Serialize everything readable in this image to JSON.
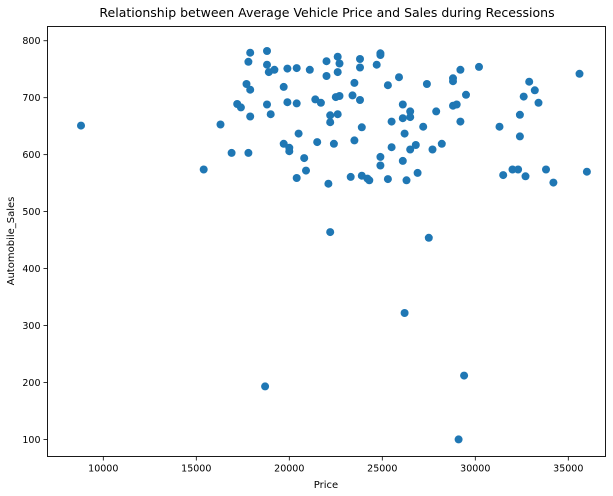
{
  "chart_data": {
    "type": "scatter",
    "title": "Relationship between Average Vehicle Price and Sales during Recessions",
    "xlabel": "Price",
    "ylabel": "Automobile_Sales",
    "xlim": [
      7000,
      37000
    ],
    "ylim": [
      70,
      825
    ],
    "xticks": [
      10000,
      15000,
      20000,
      25000,
      30000,
      35000
    ],
    "xtick_labels": [
      "10000",
      "15000",
      "20000",
      "25000",
      "30000",
      "35000"
    ],
    "yticks": [
      100,
      200,
      300,
      400,
      500,
      600,
      700,
      800
    ],
    "ytick_labels": [
      "100",
      "200",
      "300",
      "400",
      "500",
      "600",
      "700",
      "800"
    ],
    "grid": false,
    "marker_color": "#1f77b4",
    "points": [
      {
        "x": 8800,
        "y": 651
      },
      {
        "x": 15400,
        "y": 574
      },
      {
        "x": 16300,
        "y": 653
      },
      {
        "x": 16900,
        "y": 603
      },
      {
        "x": 17200,
        "y": 689
      },
      {
        "x": 17400,
        "y": 683
      },
      {
        "x": 17700,
        "y": 724
      },
      {
        "x": 17800,
        "y": 763
      },
      {
        "x": 17800,
        "y": 603
      },
      {
        "x": 17900,
        "y": 779
      },
      {
        "x": 17900,
        "y": 714
      },
      {
        "x": 17900,
        "y": 667
      },
      {
        "x": 18700,
        "y": 193
      },
      {
        "x": 18800,
        "y": 782
      },
      {
        "x": 18800,
        "y": 758
      },
      {
        "x": 18800,
        "y": 688
      },
      {
        "x": 18900,
        "y": 745
      },
      {
        "x": 19000,
        "y": 671
      },
      {
        "x": 19200,
        "y": 749
      },
      {
        "x": 19700,
        "y": 719
      },
      {
        "x": 19700,
        "y": 619
      },
      {
        "x": 19900,
        "y": 751
      },
      {
        "x": 19900,
        "y": 692
      },
      {
        "x": 20000,
        "y": 612
      },
      {
        "x": 20000,
        "y": 606
      },
      {
        "x": 20400,
        "y": 752
      },
      {
        "x": 20400,
        "y": 690
      },
      {
        "x": 20500,
        "y": 637
      },
      {
        "x": 20400,
        "y": 559
      },
      {
        "x": 20800,
        "y": 594
      },
      {
        "x": 20900,
        "y": 572
      },
      {
        "x": 21100,
        "y": 749
      },
      {
        "x": 21400,
        "y": 697
      },
      {
        "x": 21500,
        "y": 622
      },
      {
        "x": 21700,
        "y": 691
      },
      {
        "x": 22000,
        "y": 764
      },
      {
        "x": 22000,
        "y": 738
      },
      {
        "x": 22200,
        "y": 669
      },
      {
        "x": 22200,
        "y": 657
      },
      {
        "x": 22100,
        "y": 549
      },
      {
        "x": 22200,
        "y": 464
      },
      {
        "x": 22500,
        "y": 701
      },
      {
        "x": 22400,
        "y": 619
      },
      {
        "x": 22600,
        "y": 772
      },
      {
        "x": 22600,
        "y": 745
      },
      {
        "x": 22600,
        "y": 671
      },
      {
        "x": 22700,
        "y": 760
      },
      {
        "x": 22700,
        "y": 703
      },
      {
        "x": 23300,
        "y": 561
      },
      {
        "x": 23400,
        "y": 704
      },
      {
        "x": 23500,
        "y": 726
      },
      {
        "x": 23500,
        "y": 625
      },
      {
        "x": 23800,
        "y": 753
      },
      {
        "x": 23800,
        "y": 768
      },
      {
        "x": 23800,
        "y": 696
      },
      {
        "x": 23900,
        "y": 648
      },
      {
        "x": 23900,
        "y": 563
      },
      {
        "x": 24200,
        "y": 558
      },
      {
        "x": 24300,
        "y": 555
      },
      {
        "x": 24700,
        "y": 758
      },
      {
        "x": 24900,
        "y": 775
      },
      {
        "x": 24900,
        "y": 778
      },
      {
        "x": 24900,
        "y": 581
      },
      {
        "x": 24900,
        "y": 596
      },
      {
        "x": 25300,
        "y": 722
      },
      {
        "x": 25300,
        "y": 557
      },
      {
        "x": 25500,
        "y": 658
      },
      {
        "x": 25500,
        "y": 613
      },
      {
        "x": 25900,
        "y": 736
      },
      {
        "x": 26100,
        "y": 688
      },
      {
        "x": 26100,
        "y": 664
      },
      {
        "x": 26100,
        "y": 589
      },
      {
        "x": 26200,
        "y": 637
      },
      {
        "x": 26200,
        "y": 322
      },
      {
        "x": 26300,
        "y": 555
      },
      {
        "x": 26500,
        "y": 676
      },
      {
        "x": 26500,
        "y": 666
      },
      {
        "x": 26500,
        "y": 609
      },
      {
        "x": 26800,
        "y": 617
      },
      {
        "x": 26900,
        "y": 568
      },
      {
        "x": 27200,
        "y": 649
      },
      {
        "x": 27400,
        "y": 724
      },
      {
        "x": 27500,
        "y": 454
      },
      {
        "x": 27700,
        "y": 609
      },
      {
        "x": 27900,
        "y": 676
      },
      {
        "x": 28200,
        "y": 619
      },
      {
        "x": 28800,
        "y": 734
      },
      {
        "x": 28800,
        "y": 729
      },
      {
        "x": 28800,
        "y": 686
      },
      {
        "x": 29000,
        "y": 688
      },
      {
        "x": 29100,
        "y": 100
      },
      {
        "x": 29200,
        "y": 749
      },
      {
        "x": 29200,
        "y": 658
      },
      {
        "x": 29400,
        "y": 212
      },
      {
        "x": 29500,
        "y": 705
      },
      {
        "x": 30200,
        "y": 754
      },
      {
        "x": 31300,
        "y": 649
      },
      {
        "x": 31500,
        "y": 564
      },
      {
        "x": 32000,
        "y": 574
      },
      {
        "x": 32300,
        "y": 574
      },
      {
        "x": 32400,
        "y": 670
      },
      {
        "x": 32400,
        "y": 632
      },
      {
        "x": 32600,
        "y": 702
      },
      {
        "x": 32700,
        "y": 562
      },
      {
        "x": 32900,
        "y": 728
      },
      {
        "x": 33200,
        "y": 713
      },
      {
        "x": 33400,
        "y": 691
      },
      {
        "x": 33800,
        "y": 574
      },
      {
        "x": 34200,
        "y": 551
      },
      {
        "x": 35600,
        "y": 742
      },
      {
        "x": 36000,
        "y": 570
      }
    ]
  }
}
